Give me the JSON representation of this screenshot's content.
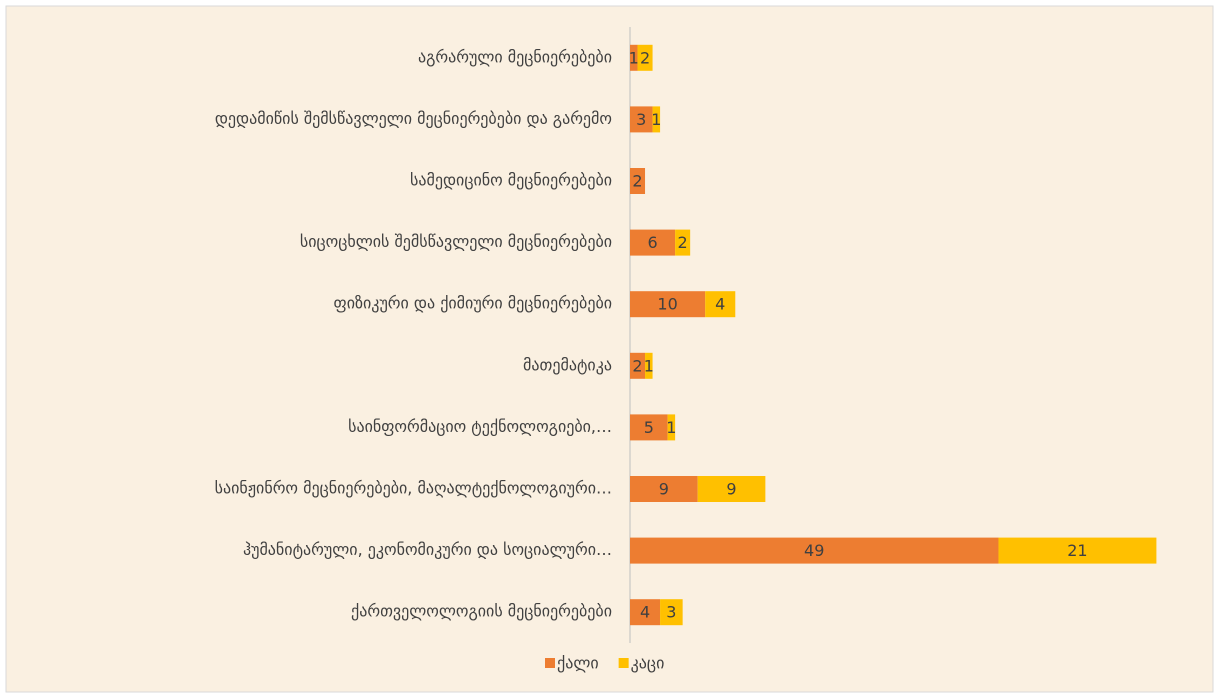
{
  "chart_data": {
    "type": "bar",
    "orientation": "horizontal",
    "stacked": true,
    "categories": [
      "აგრარული მეცნიერებები",
      "დედამიწის შემსწავლელი მეცნიერებები და გარემო",
      "სამედიცინო მეცნიერებები",
      "სიცოცხლის შემსწავლელი მეცნიერებები",
      "ფიზიკური და ქიმიური მეცნიერებები",
      "მათემატიკა",
      "საინფორმაციო ტექნოლოგიები,…",
      "საინჟინრო მეცნიერებები, მაღალტექნოლოგიური…",
      "ჰუმანიტარული, ეკონომიკური და სოციალური…",
      "ქართველოლოგიის მეცნიერებები"
    ],
    "series": [
      {
        "name": "ქალი",
        "color": "#ed7d31",
        "values": [
          1,
          3,
          2,
          6,
          10,
          2,
          5,
          9,
          49,
          4
        ]
      },
      {
        "name": "კაცი",
        "color": "#ffc000",
        "values": [
          2,
          1,
          null,
          2,
          4,
          1,
          1,
          9,
          21,
          3
        ]
      }
    ],
    "xlim": [
      0,
      75
    ],
    "legend": "bottom"
  }
}
